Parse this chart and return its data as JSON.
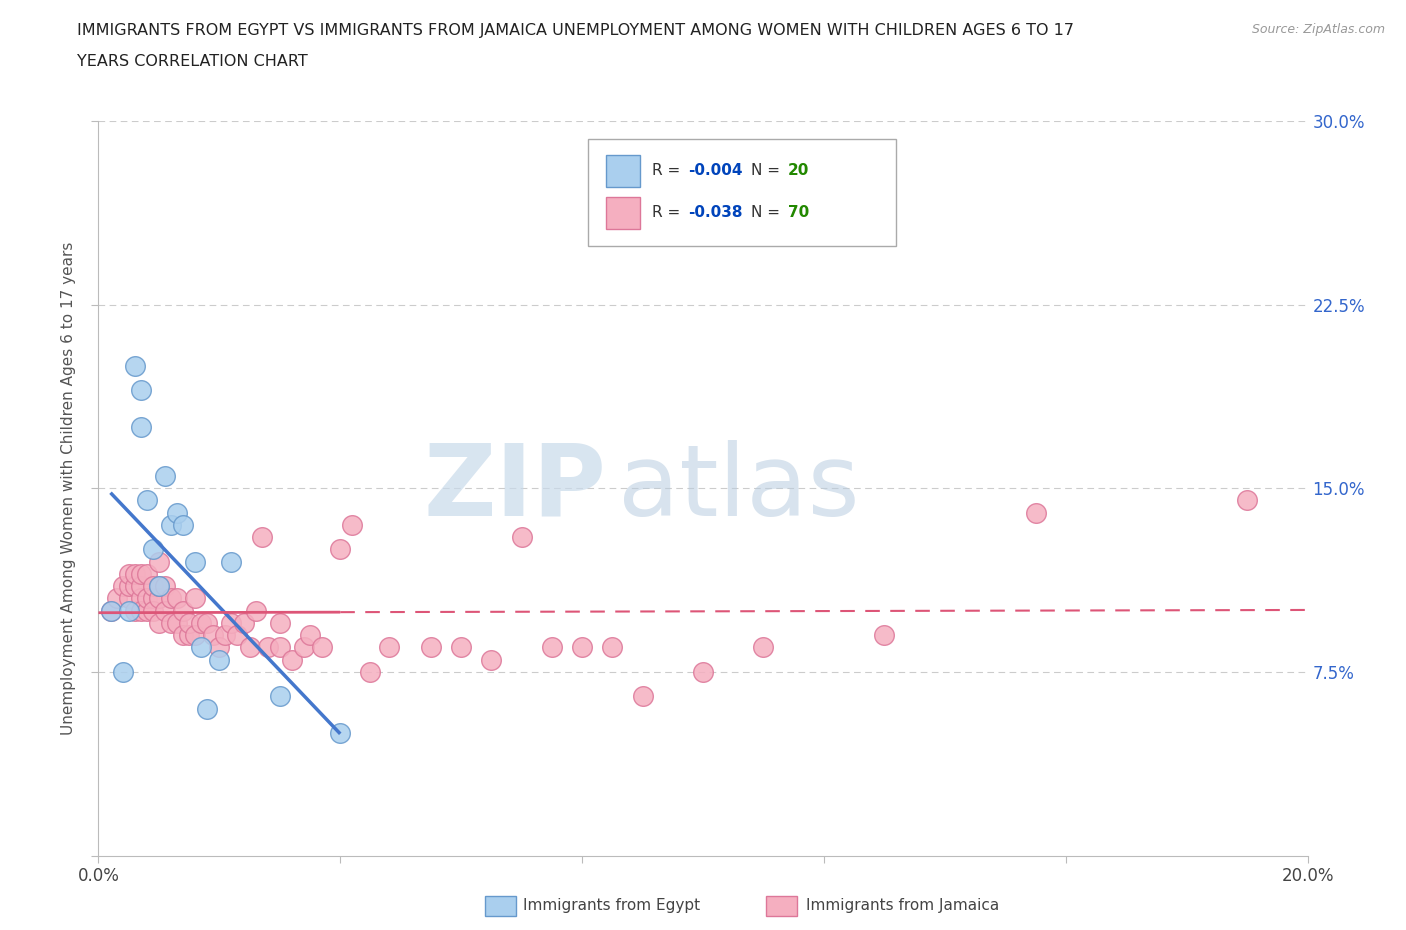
{
  "title_line1": "IMMIGRANTS FROM EGYPT VS IMMIGRANTS FROM JAMAICA UNEMPLOYMENT AMONG WOMEN WITH CHILDREN AGES 6 TO 17",
  "title_line2": "YEARS CORRELATION CHART",
  "source": "Source: ZipAtlas.com",
  "ylabel": "Unemployment Among Women with Children Ages 6 to 17 years",
  "xlim": [
    0.0,
    0.2
  ],
  "ylim": [
    0.0,
    0.3
  ],
  "grid_color": "#cccccc",
  "background_color": "#ffffff",
  "egypt_color": "#aacfee",
  "jamaica_color": "#f5afc0",
  "egypt_edge": "#6699cc",
  "jamaica_edge": "#dd7799",
  "egypt_R": -0.004,
  "egypt_N": 20,
  "jamaica_R": -0.038,
  "jamaica_N": 70,
  "egypt_line_color": "#4477cc",
  "jamaica_line_color": "#dd5577",
  "legend_R_color": "#0044bb",
  "legend_N_color": "#228800",
  "egypt_x": [
    0.002,
    0.004,
    0.005,
    0.006,
    0.007,
    0.007,
    0.008,
    0.009,
    0.01,
    0.011,
    0.012,
    0.013,
    0.014,
    0.016,
    0.017,
    0.018,
    0.02,
    0.022,
    0.03,
    0.04
  ],
  "egypt_y": [
    0.1,
    0.075,
    0.1,
    0.2,
    0.19,
    0.175,
    0.145,
    0.125,
    0.11,
    0.155,
    0.135,
    0.14,
    0.135,
    0.12,
    0.085,
    0.06,
    0.08,
    0.12,
    0.065,
    0.05
  ],
  "jamaica_x": [
    0.002,
    0.003,
    0.004,
    0.005,
    0.005,
    0.005,
    0.006,
    0.006,
    0.006,
    0.007,
    0.007,
    0.007,
    0.007,
    0.008,
    0.008,
    0.008,
    0.009,
    0.009,
    0.009,
    0.01,
    0.01,
    0.01,
    0.01,
    0.011,
    0.011,
    0.012,
    0.012,
    0.013,
    0.013,
    0.014,
    0.014,
    0.015,
    0.015,
    0.016,
    0.016,
    0.017,
    0.018,
    0.019,
    0.02,
    0.021,
    0.022,
    0.023,
    0.024,
    0.025,
    0.026,
    0.027,
    0.028,
    0.03,
    0.03,
    0.032,
    0.034,
    0.035,
    0.037,
    0.04,
    0.042,
    0.045,
    0.048,
    0.055,
    0.06,
    0.065,
    0.07,
    0.075,
    0.08,
    0.085,
    0.09,
    0.1,
    0.11,
    0.13,
    0.155,
    0.19
  ],
  "jamaica_y": [
    0.1,
    0.105,
    0.11,
    0.105,
    0.11,
    0.115,
    0.1,
    0.11,
    0.115,
    0.105,
    0.11,
    0.1,
    0.115,
    0.1,
    0.105,
    0.115,
    0.105,
    0.1,
    0.11,
    0.095,
    0.105,
    0.11,
    0.12,
    0.1,
    0.11,
    0.095,
    0.105,
    0.095,
    0.105,
    0.09,
    0.1,
    0.09,
    0.095,
    0.09,
    0.105,
    0.095,
    0.095,
    0.09,
    0.085,
    0.09,
    0.095,
    0.09,
    0.095,
    0.085,
    0.1,
    0.13,
    0.085,
    0.085,
    0.095,
    0.08,
    0.085,
    0.09,
    0.085,
    0.125,
    0.135,
    0.075,
    0.085,
    0.085,
    0.085,
    0.08,
    0.13,
    0.085,
    0.085,
    0.085,
    0.065,
    0.075,
    0.085,
    0.09,
    0.14,
    0.145
  ]
}
